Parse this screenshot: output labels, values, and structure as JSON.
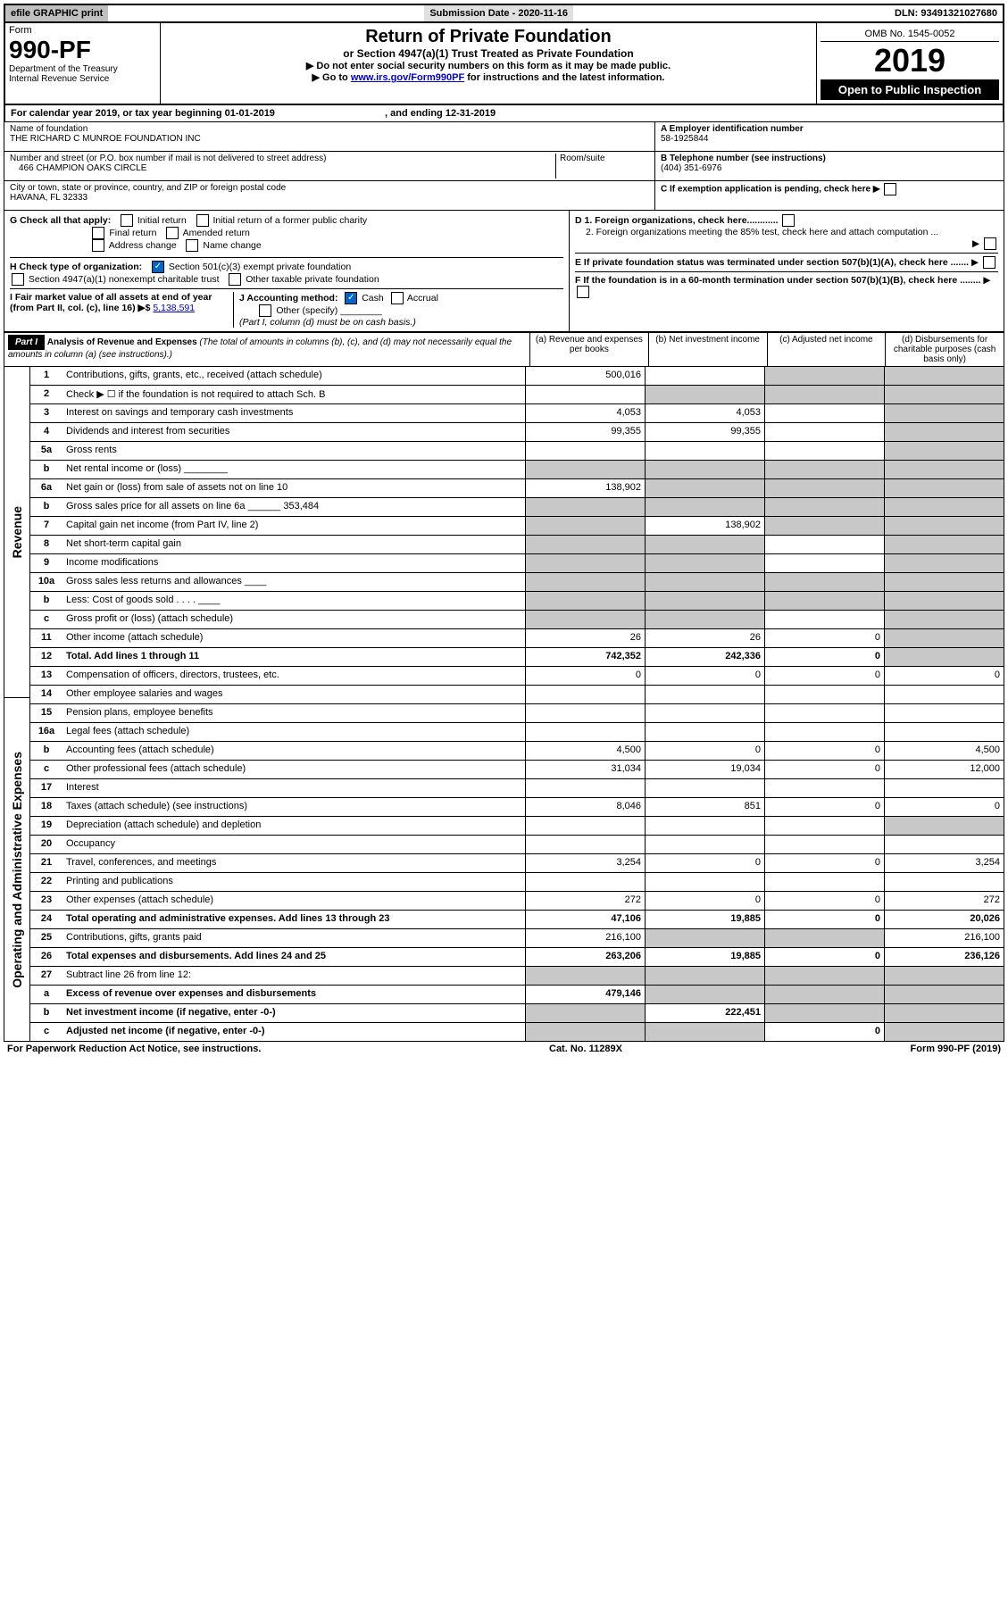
{
  "topbar": {
    "efile": "efile GRAPHIC print",
    "subdate": "Submission Date - 2020-11-16",
    "dln": "DLN: 93491321027680"
  },
  "header": {
    "form_label": "Form",
    "form_no": "990-PF",
    "dept": "Department of the Treasury\nInternal Revenue Service",
    "title": "Return of Private Foundation",
    "subtitle": "or Section 4947(a)(1) Trust Treated as Private Foundation",
    "instr1": "▶ Do not enter social security numbers on this form as it may be made public.",
    "instr2_pre": "▶ Go to ",
    "instr2_link": "www.irs.gov/Form990PF",
    "instr2_post": " for instructions and the latest information.",
    "omb": "OMB No. 1545-0052",
    "year": "2019",
    "open": "Open to Public Inspection"
  },
  "cal_year": {
    "pre": "For calendar year 2019, or tax year beginning ",
    "begin": "01-01-2019",
    "mid": " , and ending ",
    "end": "12-31-2019"
  },
  "info": {
    "name_label": "Name of foundation",
    "name": "THE RICHARD C MUNROE FOUNDATION INC",
    "addr_label": "Number and street (or P.O. box number if mail is not delivered to street address)",
    "room_label": "Room/suite",
    "addr": "466 CHAMPION OAKS CIRCLE",
    "city_label": "City or town, state or province, country, and ZIP or foreign postal code",
    "city": "HAVANA, FL  32333",
    "ein_label": "A Employer identification number",
    "ein": "58-1925844",
    "phone_label": "B Telephone number (see instructions)",
    "phone": "(404) 351-6976",
    "c_label": "C If exemption application is pending, check here ▶",
    "d1": "D 1. Foreign organizations, check here............",
    "d2": "2. Foreign organizations meeting the 85% test, check here and attach computation ...",
    "e": "E If private foundation status was terminated under section 507(b)(1)(A), check here .......",
    "f": "F If the foundation is in a 60-month termination under section 507(b)(1)(B), check here ........"
  },
  "g": {
    "label": "G Check all that apply:",
    "initial": "Initial return",
    "initial_former": "Initial return of a former public charity",
    "final": "Final return",
    "amended": "Amended return",
    "address": "Address change",
    "name": "Name change"
  },
  "h": {
    "label": "H Check type of organization:",
    "opt1": "Section 501(c)(3) exempt private foundation",
    "opt2": "Section 4947(a)(1) nonexempt charitable trust",
    "opt3": "Other taxable private foundation"
  },
  "i": {
    "label": "I Fair market value of all assets at end of year (from Part II, col. (c), line 16) ▶$",
    "value": "5,138,591"
  },
  "j": {
    "label": "J Accounting method:",
    "cash": "Cash",
    "accrual": "Accrual",
    "other": "Other (specify)",
    "note": "(Part I, column (d) must be on cash basis.)"
  },
  "part1": {
    "badge": "Part I",
    "title": "Analysis of Revenue and Expenses",
    "note": " (The total of amounts in columns (b), (c), and (d) may not necessarily equal the amounts in column (a) (see instructions).)",
    "col_a": "(a) Revenue and expenses per books",
    "col_b": "(b) Net investment income",
    "col_c": "(c) Adjusted net income",
    "col_d": "(d) Disbursements for charitable purposes (cash basis only)"
  },
  "side_rev": "Revenue",
  "side_exp": "Operating and Administrative Expenses",
  "rows": [
    {
      "n": "1",
      "label": "Contributions, gifts, grants, etc., received (attach schedule)",
      "a": "500,016",
      "b": "",
      "c": "shaded",
      "d": "shaded"
    },
    {
      "n": "2",
      "label": "Check ▶ ☐ if the foundation is not required to attach Sch. B",
      "a": "",
      "b": "shaded",
      "c": "shaded",
      "d": "shaded"
    },
    {
      "n": "3",
      "label": "Interest on savings and temporary cash investments",
      "a": "4,053",
      "b": "4,053",
      "c": "",
      "d": "shaded"
    },
    {
      "n": "4",
      "label": "Dividends and interest from securities",
      "a": "99,355",
      "b": "99,355",
      "c": "",
      "d": "shaded"
    },
    {
      "n": "5a",
      "label": "Gross rents",
      "a": "",
      "b": "",
      "c": "",
      "d": "shaded"
    },
    {
      "n": "b",
      "label": "Net rental income or (loss)  ________",
      "a": "shaded",
      "b": "shaded",
      "c": "shaded",
      "d": "shaded"
    },
    {
      "n": "6a",
      "label": "Net gain or (loss) from sale of assets not on line 10",
      "a": "138,902",
      "b": "shaded",
      "c": "shaded",
      "d": "shaded"
    },
    {
      "n": "b",
      "label": "Gross sales price for all assets on line 6a ______ 353,484",
      "a": "shaded",
      "b": "shaded",
      "c": "shaded",
      "d": "shaded"
    },
    {
      "n": "7",
      "label": "Capital gain net income (from Part IV, line 2)",
      "a": "shaded",
      "b": "138,902",
      "c": "shaded",
      "d": "shaded"
    },
    {
      "n": "8",
      "label": "Net short-term capital gain",
      "a": "shaded",
      "b": "shaded",
      "c": "",
      "d": "shaded"
    },
    {
      "n": "9",
      "label": "Income modifications",
      "a": "shaded",
      "b": "shaded",
      "c": "",
      "d": "shaded"
    },
    {
      "n": "10a",
      "label": "Gross sales less returns and allowances  ____",
      "a": "shaded",
      "b": "shaded",
      "c": "shaded",
      "d": "shaded"
    },
    {
      "n": "b",
      "label": "Less: Cost of goods sold  . . . .  ____",
      "a": "shaded",
      "b": "shaded",
      "c": "shaded",
      "d": "shaded"
    },
    {
      "n": "c",
      "label": "Gross profit or (loss) (attach schedule)",
      "a": "shaded",
      "b": "shaded",
      "c": "",
      "d": "shaded"
    },
    {
      "n": "11",
      "label": "Other income (attach schedule)",
      "a": "26",
      "b": "26",
      "c": "0",
      "d": "shaded"
    },
    {
      "n": "12",
      "label": "Total. Add lines 1 through 11",
      "a": "742,352",
      "b": "242,336",
      "c": "0",
      "d": "shaded",
      "bold": true
    },
    {
      "n": "13",
      "label": "Compensation of officers, directors, trustees, etc.",
      "a": "0",
      "b": "0",
      "c": "0",
      "d": "0"
    },
    {
      "n": "14",
      "label": "Other employee salaries and wages",
      "a": "",
      "b": "",
      "c": "",
      "d": ""
    },
    {
      "n": "15",
      "label": "Pension plans, employee benefits",
      "a": "",
      "b": "",
      "c": "",
      "d": ""
    },
    {
      "n": "16a",
      "label": "Legal fees (attach schedule)",
      "a": "",
      "b": "",
      "c": "",
      "d": ""
    },
    {
      "n": "b",
      "label": "Accounting fees (attach schedule)",
      "a": "4,500",
      "b": "0",
      "c": "0",
      "d": "4,500"
    },
    {
      "n": "c",
      "label": "Other professional fees (attach schedule)",
      "a": "31,034",
      "b": "19,034",
      "c": "0",
      "d": "12,000"
    },
    {
      "n": "17",
      "label": "Interest",
      "a": "",
      "b": "",
      "c": "",
      "d": ""
    },
    {
      "n": "18",
      "label": "Taxes (attach schedule) (see instructions)",
      "a": "8,046",
      "b": "851",
      "c": "0",
      "d": "0"
    },
    {
      "n": "19",
      "label": "Depreciation (attach schedule) and depletion",
      "a": "",
      "b": "",
      "c": "",
      "d": "shaded"
    },
    {
      "n": "20",
      "label": "Occupancy",
      "a": "",
      "b": "",
      "c": "",
      "d": ""
    },
    {
      "n": "21",
      "label": "Travel, conferences, and meetings",
      "a": "3,254",
      "b": "0",
      "c": "0",
      "d": "3,254"
    },
    {
      "n": "22",
      "label": "Printing and publications",
      "a": "",
      "b": "",
      "c": "",
      "d": ""
    },
    {
      "n": "23",
      "label": "Other expenses (attach schedule)",
      "a": "272",
      "b": "0",
      "c": "0",
      "d": "272"
    },
    {
      "n": "24",
      "label": "Total operating and administrative expenses. Add lines 13 through 23",
      "a": "47,106",
      "b": "19,885",
      "c": "0",
      "d": "20,026",
      "bold": true
    },
    {
      "n": "25",
      "label": "Contributions, gifts, grants paid",
      "a": "216,100",
      "b": "shaded",
      "c": "shaded",
      "d": "216,100"
    },
    {
      "n": "26",
      "label": "Total expenses and disbursements. Add lines 24 and 25",
      "a": "263,206",
      "b": "19,885",
      "c": "0",
      "d": "236,126",
      "bold": true
    },
    {
      "n": "27",
      "label": "Subtract line 26 from line 12:",
      "a": "shaded",
      "b": "shaded",
      "c": "shaded",
      "d": "shaded"
    },
    {
      "n": "a",
      "label": "Excess of revenue over expenses and disbursements",
      "a": "479,146",
      "b": "shaded",
      "c": "shaded",
      "d": "shaded",
      "bold": true
    },
    {
      "n": "b",
      "label": "Net investment income (if negative, enter -0-)",
      "a": "shaded",
      "b": "222,451",
      "c": "shaded",
      "d": "shaded",
      "bold": true
    },
    {
      "n": "c",
      "label": "Adjusted net income (if negative, enter -0-)",
      "a": "shaded",
      "b": "shaded",
      "c": "0",
      "d": "shaded",
      "bold": true
    }
  ],
  "footer": {
    "left": "For Paperwork Reduction Act Notice, see instructions.",
    "mid": "Cat. No. 11289X",
    "right": "Form 990-PF (2019)"
  }
}
